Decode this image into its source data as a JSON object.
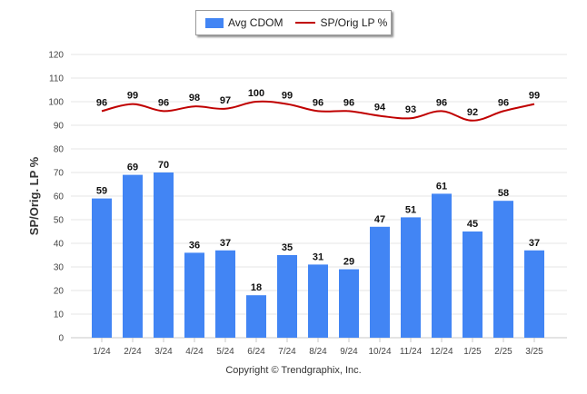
{
  "chart_data": {
    "type": "bar",
    "categories": [
      "1/24",
      "2/24",
      "3/24",
      "4/24",
      "5/24",
      "6/24",
      "7/24",
      "8/24",
      "9/24",
      "10/24",
      "11/24",
      "12/24",
      "1/25",
      "2/25",
      "3/25"
    ],
    "series": [
      {
        "name": "Avg CDOM",
        "type": "bar",
        "color": "#4285f4",
        "values": [
          59,
          69,
          70,
          36,
          37,
          18,
          35,
          31,
          29,
          47,
          51,
          61,
          45,
          58,
          37
        ]
      },
      {
        "name": "SP/Orig LP %",
        "type": "line",
        "color": "#c00000",
        "values": [
          96,
          99,
          96,
          98,
          97,
          100,
          99,
          96,
          96,
          94,
          93,
          96,
          92,
          96,
          99
        ]
      }
    ],
    "ylabel": "SP/Orig. LP %",
    "ylim": [
      0,
      120
    ],
    "yticks": [
      0,
      10,
      20,
      30,
      40,
      50,
      60,
      70,
      80,
      90,
      100,
      110,
      120
    ],
    "grid": true,
    "legend_position": "top-center"
  },
  "footer": {
    "copyright": "Copyright © Trendgraphix, Inc."
  }
}
